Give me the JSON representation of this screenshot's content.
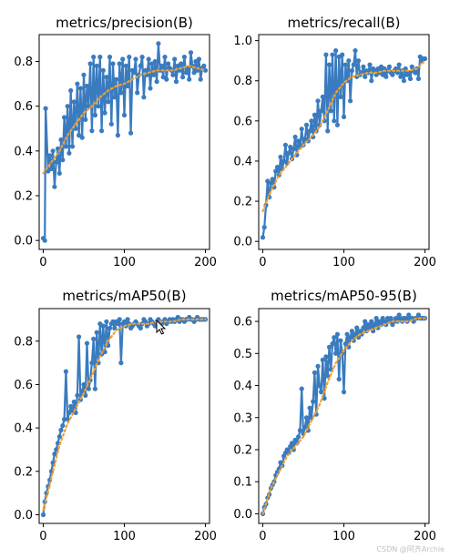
{
  "watermark": "CSDN @阿齐Archie",
  "chart_data": [
    {
      "type": "line",
      "title": "metrics/precision(B)",
      "xlim": [
        -5,
        205
      ],
      "ylim": [
        -0.04,
        0.92
      ],
      "xticks": [
        0,
        100,
        200
      ],
      "yticks": [
        0.0,
        0.2,
        0.4,
        0.6,
        0.8
      ],
      "ytick_labels": [
        "0.0",
        "0.2",
        "0.4",
        "0.6",
        "0.8"
      ],
      "series": [
        {
          "color": "#3a7bbf",
          "marker": "o",
          "connect": true,
          "x": [
            0,
            2,
            3,
            6,
            8,
            10,
            12,
            14,
            16,
            18,
            20,
            22,
            24,
            26,
            28,
            30,
            32,
            34,
            36,
            38,
            40,
            42,
            44,
            46,
            48,
            50,
            52,
            54,
            56,
            58,
            60,
            62,
            64,
            66,
            68,
            70,
            72,
            74,
            76,
            78,
            80,
            82,
            84,
            86,
            88,
            90,
            92,
            94,
            96,
            98,
            100,
            102,
            104,
            106,
            108,
            110,
            112,
            114,
            116,
            118,
            120,
            122,
            124,
            126,
            128,
            130,
            132,
            134,
            136,
            138,
            140,
            142,
            144,
            146,
            148,
            150,
            152,
            154,
            156,
            158,
            160,
            162,
            164,
            166,
            168,
            170,
            172,
            174,
            176,
            178,
            180,
            182,
            184,
            186,
            188,
            190,
            192,
            194,
            196,
            198,
            200
          ],
          "y": [
            0.01,
            0.0,
            0.59,
            0.31,
            0.38,
            0.32,
            0.4,
            0.24,
            0.35,
            0.41,
            0.3,
            0.45,
            0.36,
            0.55,
            0.42,
            0.6,
            0.39,
            0.67,
            0.42,
            0.62,
            0.5,
            0.7,
            0.47,
            0.68,
            0.46,
            0.74,
            0.54,
            0.69,
            0.6,
            0.79,
            0.49,
            0.82,
            0.56,
            0.78,
            0.6,
            0.82,
            0.49,
            0.76,
            0.57,
            0.73,
            0.62,
            0.82,
            0.52,
            0.79,
            0.64,
            0.72,
            0.47,
            0.79,
            0.66,
            0.81,
            0.56,
            0.78,
            0.69,
            0.82,
            0.48,
            0.76,
            0.75,
            0.81,
            0.66,
            0.74,
            0.78,
            0.82,
            0.64,
            0.76,
            0.74,
            0.81,
            0.68,
            0.79,
            0.74,
            0.8,
            0.71,
            0.88,
            0.76,
            0.78,
            0.73,
            0.82,
            0.72,
            0.79,
            0.77,
            0.76,
            0.74,
            0.81,
            0.71,
            0.78,
            0.76,
            0.79,
            0.73,
            0.82,
            0.75,
            0.77,
            0.72,
            0.84,
            0.78,
            0.75,
            0.8,
            0.76,
            0.81,
            0.72,
            0.77,
            0.78,
            0.76
          ]
        },
        {
          "color": "#f0a030",
          "style": "dotted",
          "x": [
            0,
            10,
            20,
            30,
            40,
            50,
            60,
            70,
            80,
            90,
            100,
            110,
            120,
            130,
            140,
            150,
            160,
            170,
            180,
            190,
            200
          ],
          "y": [
            0.3,
            0.35,
            0.4,
            0.47,
            0.52,
            0.57,
            0.6,
            0.64,
            0.67,
            0.69,
            0.7,
            0.72,
            0.74,
            0.75,
            0.76,
            0.76,
            0.76,
            0.77,
            0.78,
            0.77,
            0.76
          ]
        }
      ]
    },
    {
      "type": "line",
      "title": "metrics/recall(B)",
      "xlim": [
        -5,
        205
      ],
      "ylim": [
        -0.04,
        1.03
      ],
      "xticks": [
        0,
        100,
        200
      ],
      "yticks": [
        0.0,
        0.2,
        0.4,
        0.6,
        0.8,
        1.0
      ],
      "ytick_labels": [
        "0.0",
        "0.2",
        "0.4",
        "0.6",
        "0.8",
        "1.0"
      ],
      "series": [
        {
          "color": "#3a7bbf",
          "marker": "o",
          "connect": true,
          "x": [
            0,
            2,
            4,
            6,
            8,
            10,
            12,
            14,
            16,
            18,
            20,
            22,
            24,
            26,
            28,
            30,
            32,
            34,
            36,
            38,
            40,
            42,
            44,
            46,
            48,
            50,
            52,
            54,
            56,
            58,
            60,
            62,
            64,
            66,
            68,
            70,
            72,
            74,
            76,
            78,
            80,
            82,
            84,
            86,
            88,
            90,
            92,
            94,
            96,
            98,
            100,
            102,
            104,
            106,
            108,
            110,
            112,
            114,
            116,
            118,
            120,
            122,
            124,
            126,
            128,
            130,
            132,
            134,
            136,
            138,
            140,
            142,
            144,
            146,
            148,
            150,
            152,
            154,
            156,
            158,
            160,
            162,
            164,
            166,
            168,
            170,
            172,
            174,
            176,
            178,
            180,
            182,
            184,
            186,
            188,
            190,
            192,
            194,
            196,
            198,
            200
          ],
          "y": [
            0.02,
            0.07,
            0.18,
            0.3,
            0.22,
            0.29,
            0.31,
            0.27,
            0.35,
            0.37,
            0.33,
            0.42,
            0.36,
            0.4,
            0.48,
            0.39,
            0.44,
            0.47,
            0.41,
            0.46,
            0.52,
            0.43,
            0.5,
            0.47,
            0.56,
            0.48,
            0.51,
            0.58,
            0.5,
            0.55,
            0.6,
            0.52,
            0.63,
            0.55,
            0.7,
            0.58,
            0.65,
            0.72,
            0.6,
            0.93,
            0.55,
            0.88,
            0.65,
            0.93,
            0.6,
            0.95,
            0.58,
            0.92,
            0.72,
            0.93,
            0.62,
            0.88,
            0.8,
            0.9,
            0.7,
            0.85,
            0.88,
            0.95,
            0.82,
            0.9,
            0.83,
            0.84,
            0.87,
            0.82,
            0.85,
            0.84,
            0.88,
            0.8,
            0.86,
            0.85,
            0.83,
            0.86,
            0.84,
            0.87,
            0.83,
            0.86,
            0.82,
            0.85,
            0.87,
            0.84,
            0.83,
            0.85,
            0.86,
            0.84,
            0.88,
            0.82,
            0.85,
            0.8,
            0.86,
            0.83,
            0.84,
            0.81,
            0.87,
            0.85,
            0.84,
            0.86,
            0.81,
            0.92,
            0.9,
            0.91,
            0.91
          ]
        },
        {
          "color": "#f0a030",
          "style": "dotted",
          "x": [
            0,
            10,
            20,
            30,
            40,
            50,
            60,
            70,
            80,
            90,
            100,
            110,
            120,
            130,
            140,
            150,
            160,
            170,
            180,
            190,
            200
          ],
          "y": [
            0.15,
            0.25,
            0.33,
            0.38,
            0.43,
            0.48,
            0.52,
            0.57,
            0.65,
            0.74,
            0.79,
            0.82,
            0.83,
            0.84,
            0.84,
            0.85,
            0.85,
            0.85,
            0.85,
            0.86,
            0.9
          ]
        }
      ]
    },
    {
      "type": "line",
      "title": "metrics/mAP50(B)",
      "xlim": [
        -5,
        205
      ],
      "ylim": [
        -0.04,
        0.95
      ],
      "xticks": [
        0,
        100,
        200
      ],
      "yticks": [
        0.0,
        0.2,
        0.4,
        0.6,
        0.8
      ],
      "ytick_labels": [
        "0.0",
        "0.2",
        "0.4",
        "0.6",
        "0.8"
      ],
      "series": [
        {
          "color": "#3a7bbf",
          "marker": "o",
          "connect": true,
          "x": [
            0,
            2,
            4,
            6,
            8,
            10,
            12,
            14,
            16,
            18,
            20,
            22,
            24,
            26,
            28,
            30,
            32,
            34,
            36,
            38,
            40,
            42,
            44,
            46,
            48,
            50,
            52,
            54,
            56,
            58,
            60,
            62,
            64,
            66,
            68,
            70,
            72,
            74,
            76,
            78,
            80,
            82,
            84,
            86,
            88,
            90,
            92,
            94,
            96,
            98,
            100,
            102,
            104,
            106,
            108,
            110,
            112,
            114,
            116,
            118,
            120,
            122,
            124,
            126,
            128,
            130,
            132,
            134,
            136,
            138,
            140,
            142,
            144,
            146,
            148,
            150,
            152,
            154,
            156,
            158,
            160,
            162,
            164,
            166,
            168,
            170,
            172,
            174,
            176,
            178,
            180,
            182,
            184,
            186,
            188,
            190,
            192,
            194,
            196,
            198,
            200
          ],
          "y": [
            0.0,
            0.06,
            0.1,
            0.13,
            0.16,
            0.2,
            0.24,
            0.28,
            0.3,
            0.33,
            0.36,
            0.39,
            0.41,
            0.44,
            0.66,
            0.44,
            0.47,
            0.5,
            0.48,
            0.52,
            0.47,
            0.55,
            0.82,
            0.53,
            0.57,
            0.6,
            0.55,
            0.79,
            0.58,
            0.62,
            0.7,
            0.81,
            0.58,
            0.84,
            0.7,
            0.88,
            0.74,
            0.87,
            0.75,
            0.89,
            0.78,
            0.86,
            0.88,
            0.89,
            0.86,
            0.89,
            0.88,
            0.9,
            0.7,
            0.88,
            0.89,
            0.87,
            0.9,
            0.88,
            0.86,
            0.87,
            0.88,
            0.89,
            0.88,
            0.87,
            0.86,
            0.88,
            0.9,
            0.89,
            0.87,
            0.88,
            0.9,
            0.89,
            0.88,
            0.87,
            0.89,
            0.9,
            0.89,
            0.88,
            0.89,
            0.9,
            0.88,
            0.89,
            0.9,
            0.89,
            0.9,
            0.89,
            0.9,
            0.91,
            0.89,
            0.9,
            0.9,
            0.89,
            0.9,
            0.9,
            0.91,
            0.9,
            0.9,
            0.89,
            0.9,
            0.91,
            0.9,
            0.9,
            0.9,
            0.9,
            0.9
          ]
        },
        {
          "color": "#f0a030",
          "style": "dotted",
          "x": [
            0,
            10,
            20,
            30,
            40,
            50,
            60,
            70,
            80,
            90,
            100,
            110,
            120,
            130,
            140,
            150,
            160,
            170,
            180,
            190,
            200
          ],
          "y": [
            0.02,
            0.17,
            0.32,
            0.42,
            0.49,
            0.56,
            0.64,
            0.73,
            0.8,
            0.85,
            0.87,
            0.88,
            0.88,
            0.88,
            0.89,
            0.89,
            0.89,
            0.9,
            0.9,
            0.9,
            0.9
          ]
        }
      ]
    },
    {
      "type": "line",
      "title": "metrics/mAP50-95(B)",
      "xlim": [
        -5,
        205
      ],
      "ylim": [
        -0.03,
        0.64
      ],
      "xticks": [
        0,
        100,
        200
      ],
      "yticks": [
        0.0,
        0.1,
        0.2,
        0.3,
        0.4,
        0.5,
        0.6
      ],
      "ytick_labels": [
        "0.0",
        "0.1",
        "0.2",
        "0.3",
        "0.4",
        "0.5",
        "0.6"
      ],
      "series": [
        {
          "color": "#3a7bbf",
          "marker": "o",
          "connect": true,
          "x": [
            0,
            2,
            4,
            6,
            8,
            10,
            12,
            14,
            16,
            18,
            20,
            22,
            24,
            26,
            28,
            30,
            32,
            34,
            36,
            38,
            40,
            42,
            44,
            46,
            48,
            50,
            52,
            54,
            56,
            58,
            60,
            62,
            64,
            66,
            68,
            70,
            72,
            74,
            76,
            78,
            80,
            82,
            84,
            86,
            88,
            90,
            92,
            94,
            96,
            98,
            100,
            102,
            104,
            106,
            108,
            110,
            112,
            114,
            116,
            118,
            120,
            122,
            124,
            126,
            128,
            130,
            132,
            134,
            136,
            138,
            140,
            142,
            144,
            146,
            148,
            150,
            152,
            154,
            156,
            158,
            160,
            162,
            164,
            166,
            168,
            170,
            172,
            174,
            176,
            178,
            180,
            182,
            184,
            186,
            188,
            190,
            192,
            194,
            196,
            198,
            200
          ],
          "y": [
            0.0,
            0.02,
            0.03,
            0.05,
            0.06,
            0.08,
            0.09,
            0.1,
            0.12,
            0.13,
            0.14,
            0.16,
            0.15,
            0.18,
            0.19,
            0.2,
            0.19,
            0.21,
            0.22,
            0.2,
            0.23,
            0.22,
            0.24,
            0.26,
            0.39,
            0.25,
            0.27,
            0.3,
            0.26,
            0.33,
            0.3,
            0.35,
            0.44,
            0.31,
            0.46,
            0.4,
            0.38,
            0.48,
            0.36,
            0.49,
            0.43,
            0.52,
            0.45,
            0.53,
            0.55,
            0.5,
            0.56,
            0.42,
            0.54,
            0.5,
            0.38,
            0.53,
            0.56,
            0.52,
            0.55,
            0.57,
            0.54,
            0.56,
            0.58,
            0.55,
            0.57,
            0.56,
            0.58,
            0.6,
            0.57,
            0.59,
            0.58,
            0.6,
            0.57,
            0.59,
            0.61,
            0.58,
            0.6,
            0.59,
            0.61,
            0.6,
            0.59,
            0.61,
            0.6,
            0.61,
            0.59,
            0.6,
            0.61,
            0.6,
            0.62,
            0.61,
            0.6,
            0.61,
            0.61,
            0.6,
            0.62,
            0.61,
            0.61,
            0.6,
            0.61,
            0.61,
            0.62,
            0.61,
            0.61,
            0.61,
            0.61
          ]
        },
        {
          "color": "#f0a030",
          "style": "dotted",
          "x": [
            0,
            10,
            20,
            30,
            40,
            50,
            60,
            70,
            80,
            90,
            100,
            110,
            120,
            130,
            140,
            150,
            160,
            170,
            180,
            190,
            200
          ],
          "y": [
            0.0,
            0.08,
            0.13,
            0.18,
            0.21,
            0.24,
            0.29,
            0.34,
            0.41,
            0.47,
            0.51,
            0.54,
            0.56,
            0.57,
            0.58,
            0.59,
            0.6,
            0.6,
            0.6,
            0.61,
            0.61
          ]
        }
      ]
    }
  ]
}
